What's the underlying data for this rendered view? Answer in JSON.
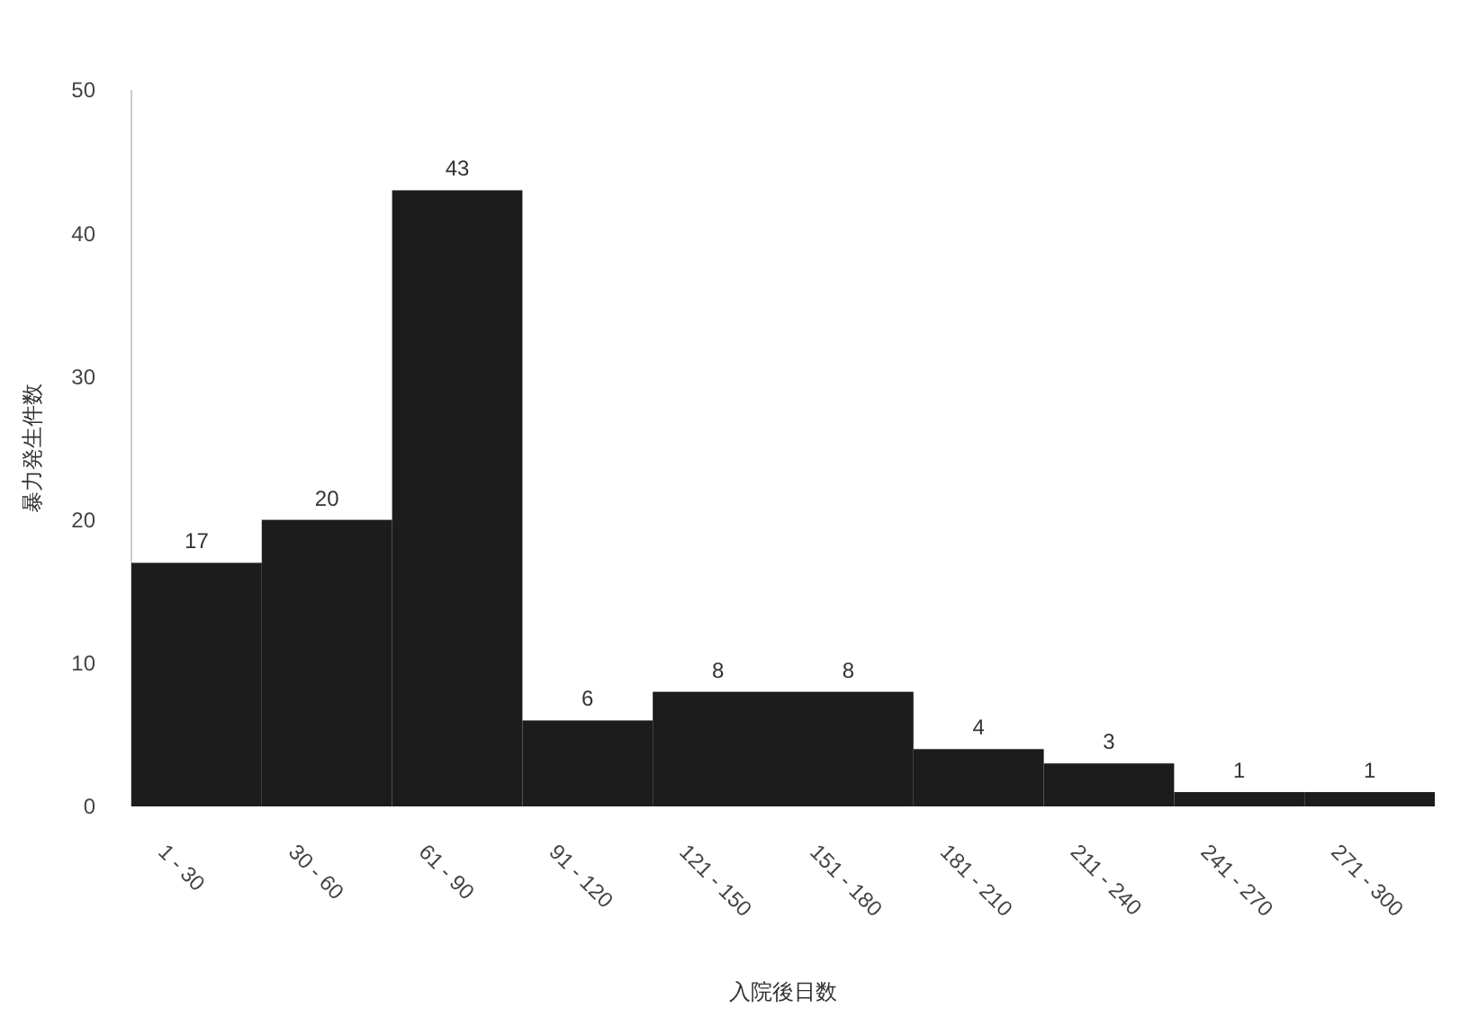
{
  "chart_data": {
    "type": "bar",
    "xlabel": "入院後日数",
    "ylabel": "暴力発生件数",
    "categories": [
      "1 - 30",
      "30 - 60",
      "61 - 90",
      "91 - 120",
      "121 - 150",
      "151 - 180",
      "181 - 210",
      "211 - 240",
      "241 - 270",
      "271 - 300"
    ],
    "values": [
      17,
      20,
      43,
      6,
      8,
      8,
      4,
      3,
      1,
      1
    ],
    "color": "#1c1c1c",
    "data_labels": true,
    "ylim": [
      0,
      50
    ],
    "yticks": [
      0,
      10,
      20,
      30,
      40,
      50
    ],
    "grid": false
  }
}
